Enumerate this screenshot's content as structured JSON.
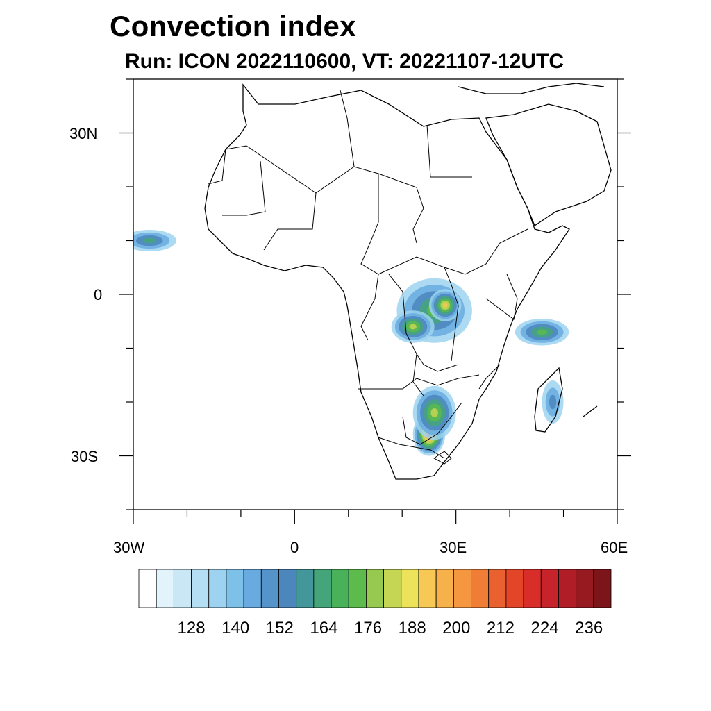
{
  "title": "Convection index",
  "subtitle": "Run: ICON 2022110600,  VT: 20221107-12UTC",
  "map": {
    "type": "filled-contour",
    "region": "Africa",
    "lon_range": [
      -30,
      60
    ],
    "lat_range": [
      -40,
      40
    ],
    "x_tick_labels": [
      "30W",
      "0",
      "30E",
      "60E"
    ],
    "y_tick_labels": [
      "30N",
      "0",
      "30S"
    ]
  },
  "colorbar": {
    "labels": [
      "128",
      "140",
      "152",
      "164",
      "176",
      "188",
      "200",
      "212",
      "224",
      "236"
    ],
    "colors": [
      "#ffffff",
      "#e3f3fb",
      "#c9e7f5",
      "#b3def4",
      "#9dd3f0",
      "#7dc0e8",
      "#69abe0",
      "#5593cb",
      "#4b86bd",
      "#43979a",
      "#44a57b",
      "#49b15a",
      "#5cbb4c",
      "#97c850",
      "#c5d654",
      "#ece35a",
      "#f7c954",
      "#f6b14a",
      "#f49740",
      "#ef7d35",
      "#e9612e",
      "#e34528",
      "#d92d2a",
      "#c7232b",
      "#b01d26",
      "#971a21",
      "#7c1519"
    ]
  },
  "convection_blobs": [
    {
      "lon": 26,
      "lat": -3,
      "rx": 7,
      "ry": 6,
      "intensity": 5
    },
    {
      "lon": 22,
      "lat": -6,
      "rx": 4,
      "ry": 3,
      "intensity": 6
    },
    {
      "lon": 28,
      "lat": -2,
      "rx": 3,
      "ry": 3,
      "intensity": 7
    },
    {
      "lon": 25,
      "lat": -26,
      "rx": 3,
      "ry": 4,
      "intensity": 9
    },
    {
      "lon": 26,
      "lat": -22,
      "rx": 4,
      "ry": 5,
      "intensity": 6
    },
    {
      "lon": 46,
      "lat": -7,
      "rx": 5,
      "ry": 2.5,
      "intensity": 5
    },
    {
      "lon": -27,
      "lat": 10,
      "rx": 5,
      "ry": 2,
      "intensity": 4
    },
    {
      "lon": 48,
      "lat": -20,
      "rx": 2,
      "ry": 4,
      "intensity": 3
    }
  ]
}
